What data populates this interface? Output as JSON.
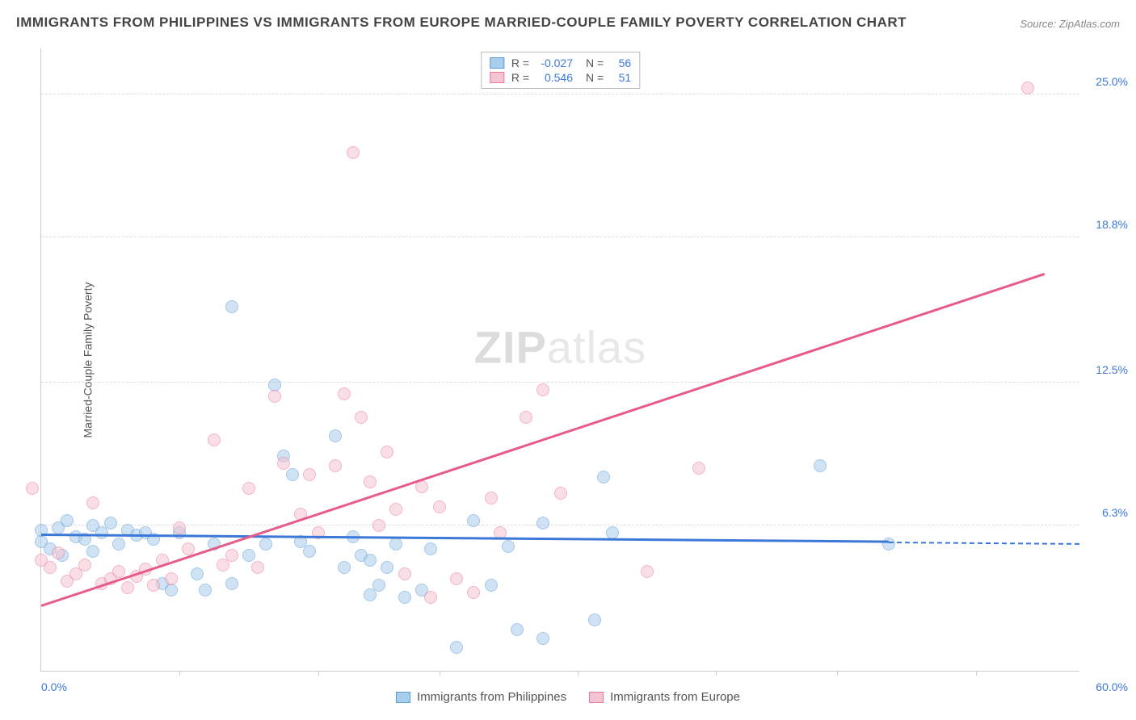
{
  "title": "IMMIGRANTS FROM PHILIPPINES VS IMMIGRANTS FROM EUROPE MARRIED-COUPLE FAMILY POVERTY CORRELATION CHART",
  "source": "Source: ZipAtlas.com",
  "watermark_a": "ZIP",
  "watermark_b": "atlas",
  "ylabel": "Married-Couple Family Poverty",
  "chart": {
    "type": "scatter",
    "xlim": [
      0,
      60
    ],
    "ylim": [
      0,
      27
    ],
    "x_min_label": "0.0%",
    "x_max_label": "60.0%",
    "y_ticks": [
      {
        "v": 6.3,
        "label": "6.3%"
      },
      {
        "v": 12.5,
        "label": "12.5%"
      },
      {
        "v": 18.8,
        "label": "18.8%"
      },
      {
        "v": 25.0,
        "label": "25.0%"
      }
    ],
    "x_minor_ticks": [
      8,
      16,
      23,
      31,
      39,
      46,
      54
    ],
    "grid_color": "#dddddd",
    "background": "#ffffff",
    "label_color": "#3c78d8",
    "marker_radius": 8,
    "marker_opacity": 0.55,
    "series": [
      {
        "key": "philippines",
        "label": "Immigrants from Philippines",
        "fill": "#a9cdec",
        "stroke": "#5a9bd4",
        "R": "-0.027",
        "N": "56",
        "trend": {
          "x1": 0,
          "y1": 5.85,
          "x2": 49,
          "y2": 5.55,
          "dash_to_x": 60,
          "color": "#3c78d8"
        },
        "points": [
          [
            0,
            5.6
          ],
          [
            0,
            6.1
          ],
          [
            0.5,
            5.3
          ],
          [
            1,
            6.2
          ],
          [
            1.2,
            5.0
          ],
          [
            1.5,
            6.5
          ],
          [
            2,
            5.8
          ],
          [
            2.5,
            5.7
          ],
          [
            3,
            6.3
          ],
          [
            3,
            5.2
          ],
          [
            3.5,
            6.0
          ],
          [
            4,
            6.4
          ],
          [
            4.5,
            5.5
          ],
          [
            5,
            6.1
          ],
          [
            5.5,
            5.9
          ],
          [
            6,
            6.0
          ],
          [
            6.5,
            5.7
          ],
          [
            7,
            3.8
          ],
          [
            7.5,
            3.5
          ],
          [
            8,
            6.0
          ],
          [
            9,
            4.2
          ],
          [
            9.5,
            3.5
          ],
          [
            10,
            5.5
          ],
          [
            11,
            15.8
          ],
          [
            11,
            3.8
          ],
          [
            12,
            5.0
          ],
          [
            13,
            5.5
          ],
          [
            13.5,
            12.4
          ],
          [
            14,
            9.3
          ],
          [
            14.5,
            8.5
          ],
          [
            15,
            5.6
          ],
          [
            15.5,
            5.2
          ],
          [
            17,
            10.2
          ],
          [
            17.5,
            4.5
          ],
          [
            18,
            5.8
          ],
          [
            18.5,
            5.0
          ],
          [
            19,
            3.3
          ],
          [
            19,
            4.8
          ],
          [
            19.5,
            3.7
          ],
          [
            20,
            4.5
          ],
          [
            20.5,
            5.5
          ],
          [
            21,
            3.2
          ],
          [
            22,
            3.5
          ],
          [
            22.5,
            5.3
          ],
          [
            24,
            1.0
          ],
          [
            25,
            6.5
          ],
          [
            26,
            3.7
          ],
          [
            27,
            5.4
          ],
          [
            27.5,
            1.8
          ],
          [
            29,
            1.4
          ],
          [
            29,
            6.4
          ],
          [
            32,
            2.2
          ],
          [
            32.5,
            8.4
          ],
          [
            33,
            6.0
          ],
          [
            45,
            8.9
          ],
          [
            49,
            5.5
          ]
        ]
      },
      {
        "key": "europe",
        "label": "Immigrants from Europe",
        "fill": "#f5c4d1",
        "stroke": "#e77a9b",
        "R": "0.546",
        "N": "51",
        "trend": {
          "x1": 0,
          "y1": 2.8,
          "x2": 58,
          "y2": 17.2,
          "color": "#e85a88"
        },
        "points": [
          [
            -0.5,
            7.9
          ],
          [
            0,
            4.8
          ],
          [
            0.5,
            4.5
          ],
          [
            1,
            5.1
          ],
          [
            1.5,
            3.9
          ],
          [
            2,
            4.2
          ],
          [
            2.5,
            4.6
          ],
          [
            3,
            7.3
          ],
          [
            3.5,
            3.8
          ],
          [
            4,
            4.0
          ],
          [
            4.5,
            4.3
          ],
          [
            5,
            3.6
          ],
          [
            5.5,
            4.1
          ],
          [
            6,
            4.4
          ],
          [
            6.5,
            3.7
          ],
          [
            7,
            4.8
          ],
          [
            7.5,
            4.0
          ],
          [
            8,
            6.2
          ],
          [
            8.5,
            5.3
          ],
          [
            10,
            10.0
          ],
          [
            10.5,
            4.6
          ],
          [
            11,
            5.0
          ],
          [
            12,
            7.9
          ],
          [
            12.5,
            4.5
          ],
          [
            13.5,
            11.9
          ],
          [
            14,
            9.0
          ],
          [
            15,
            6.8
          ],
          [
            15.5,
            8.5
          ],
          [
            16,
            6.0
          ],
          [
            17,
            8.9
          ],
          [
            17.5,
            12.0
          ],
          [
            18,
            22.5
          ],
          [
            18.5,
            11.0
          ],
          [
            19,
            8.2
          ],
          [
            19.5,
            6.3
          ],
          [
            20,
            9.5
          ],
          [
            20.5,
            7.0
          ],
          [
            21,
            4.2
          ],
          [
            22,
            8.0
          ],
          [
            22.5,
            3.2
          ],
          [
            23,
            7.1
          ],
          [
            24,
            4.0
          ],
          [
            25,
            3.4
          ],
          [
            26,
            7.5
          ],
          [
            26.5,
            6.0
          ],
          [
            28,
            11.0
          ],
          [
            29,
            12.2
          ],
          [
            30,
            7.7
          ],
          [
            35,
            4.3
          ],
          [
            38,
            8.8
          ],
          [
            57,
            25.3
          ]
        ]
      }
    ]
  },
  "legend_top_labels": {
    "R": "R =",
    "N": "N ="
  }
}
